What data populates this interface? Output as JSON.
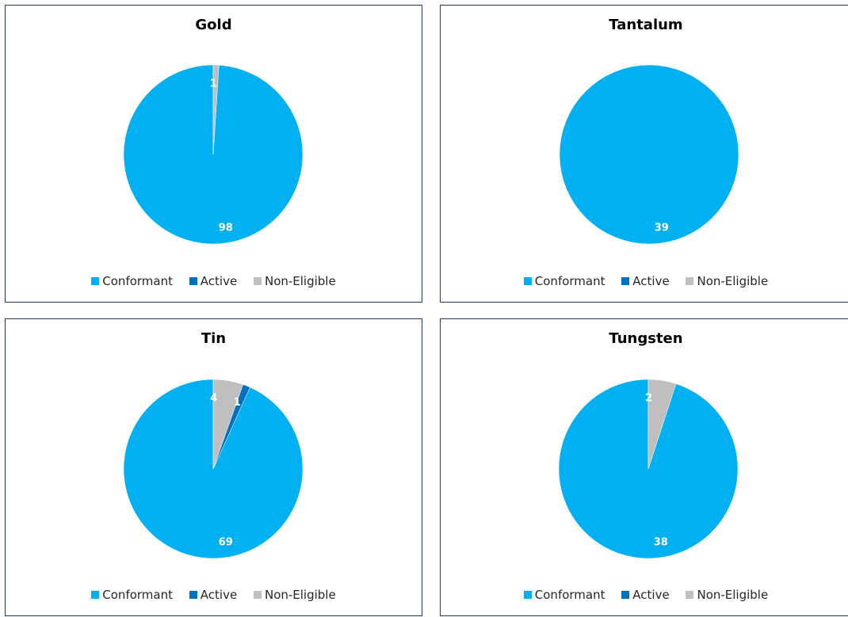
{
  "colors": {
    "Conformant": "#00b0f0",
    "Active": "#0070c0",
    "Non-Eligible": "#bfbfbf"
  },
  "chart_data": [
    {
      "type": "pie",
      "title": "Gold",
      "legend": [
        "Conformant",
        "Active",
        "Non-Eligible"
      ],
      "legend_position": "bottom",
      "slices": [
        {
          "name": "Conformant",
          "value": 98
        },
        {
          "name": "Active",
          "value": 0
        },
        {
          "name": "Non-Eligible",
          "value": 1
        }
      ]
    },
    {
      "type": "pie",
      "title": "Tantalum",
      "legend": [
        "Conformant",
        "Active",
        "Non-Eligible"
      ],
      "legend_position": "bottom",
      "slices": [
        {
          "name": "Conformant",
          "value": 39
        },
        {
          "name": "Active",
          "value": 0
        },
        {
          "name": "Non-Eligible",
          "value": 0
        }
      ]
    },
    {
      "type": "pie",
      "title": "Tin",
      "legend": [
        "Conformant",
        "Active",
        "Non-Eligible"
      ],
      "legend_position": "bottom",
      "slices": [
        {
          "name": "Conformant",
          "value": 69
        },
        {
          "name": "Active",
          "value": 1
        },
        {
          "name": "Non-Eligible",
          "value": 4
        }
      ]
    },
    {
      "type": "pie",
      "title": "Tungsten",
      "legend": [
        "Conformant",
        "Active",
        "Non-Eligible"
      ],
      "legend_position": "bottom",
      "slices": [
        {
          "name": "Conformant",
          "value": 38
        },
        {
          "name": "Active",
          "value": 0
        },
        {
          "name": "Non-Eligible",
          "value": 2
        }
      ]
    }
  ]
}
